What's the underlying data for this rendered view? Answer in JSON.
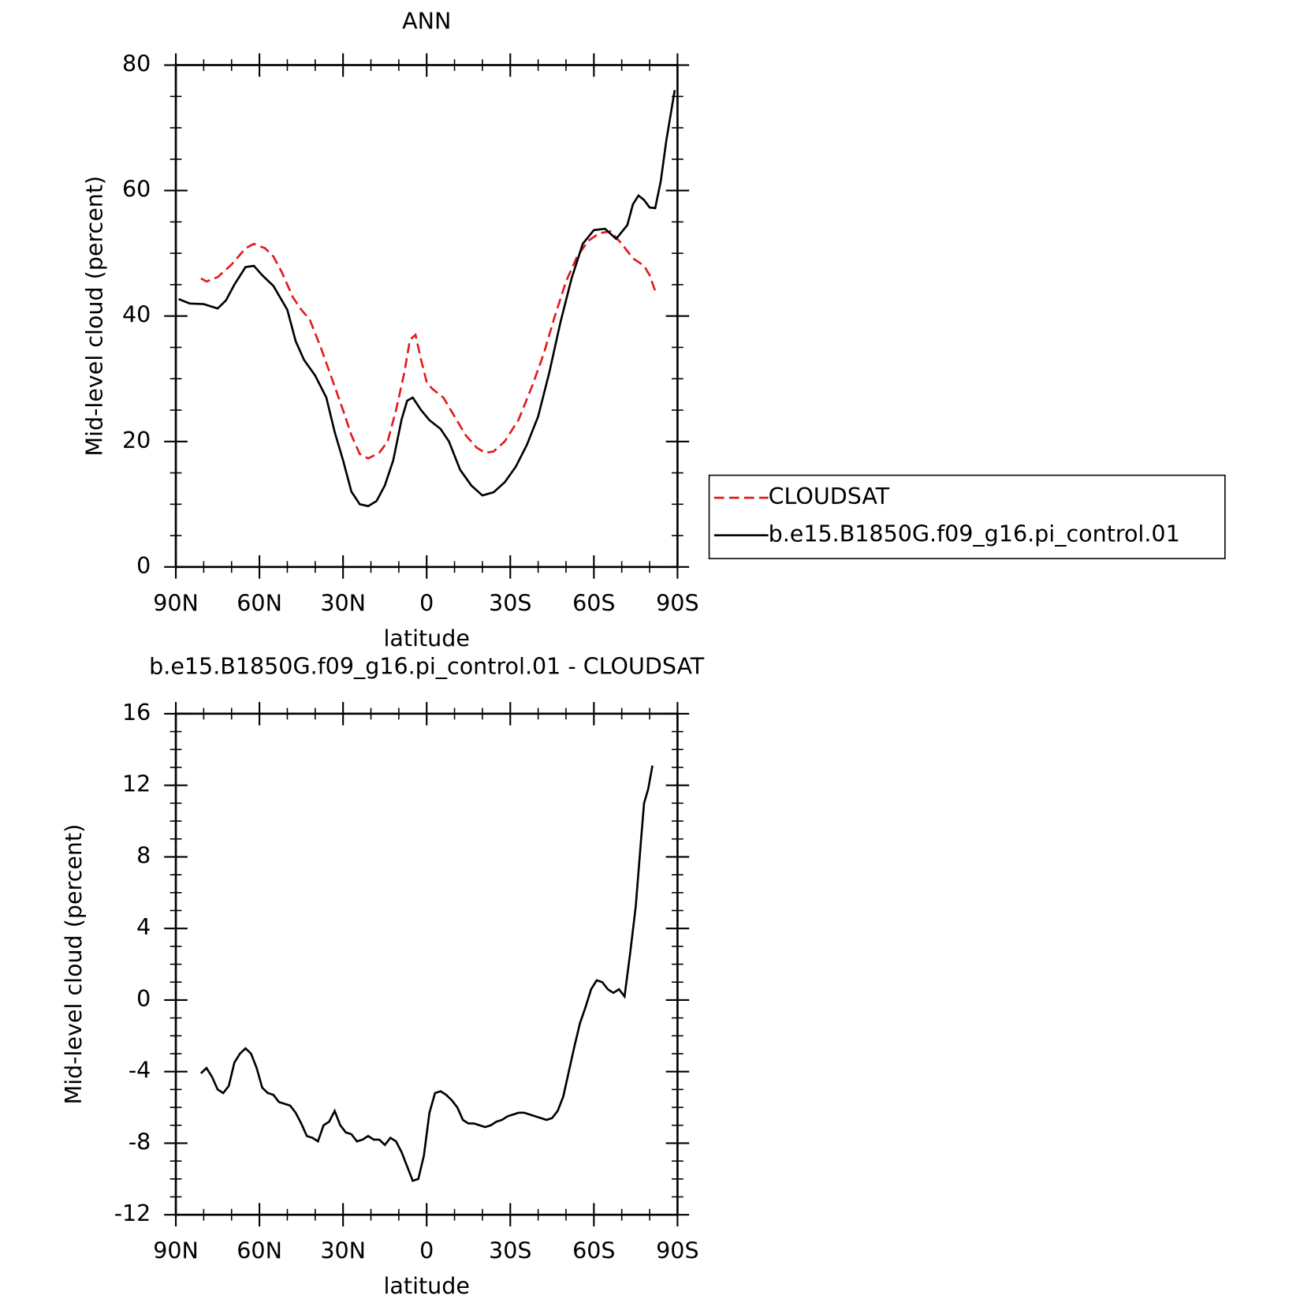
{
  "chart_data": [
    {
      "type": "line",
      "title": "ANN",
      "xlabel": "latitude",
      "ylabel": "Mid-level cloud (percent)",
      "xlim": [
        90,
        -90
      ],
      "xticks": [
        {
          "value": 90,
          "label": "90N"
        },
        {
          "value": 60,
          "label": "60N"
        },
        {
          "value": 30,
          "label": "30N"
        },
        0,
        {
          "value": -30,
          "label": "30S"
        },
        {
          "value": -60,
          "label": "60S"
        },
        {
          "value": -90,
          "label": "90S"
        }
      ],
      "ylim": [
        0,
        80
      ],
      "yticks": [
        0,
        20,
        40,
        60,
        80
      ],
      "legend": "right",
      "series": [
        {
          "name": "CLOUDSAT",
          "color": "#e31a1c",
          "linestyle": "dashed",
          "x": [
            81,
            79,
            75,
            70,
            65,
            62,
            58,
            55,
            52,
            48,
            45,
            42,
            38,
            34,
            30,
            27,
            24,
            21,
            17,
            14,
            11,
            8,
            6,
            4,
            2,
            0,
            -2,
            -6,
            -10,
            -14,
            -18,
            -21,
            -24,
            -28,
            -33,
            -38,
            -42,
            -46,
            -50,
            -54,
            -58,
            -62,
            -66,
            -70,
            -74,
            -78,
            -80,
            -82
          ],
          "values": [
            46,
            45.5,
            46.2,
            48.2,
            50.8,
            51.5,
            50.8,
            49.5,
            47,
            43,
            41,
            39.5,
            35,
            30,
            25,
            21,
            18,
            17.3,
            18.2,
            20,
            25,
            31,
            36.2,
            37,
            33,
            29.5,
            28.4,
            27,
            24,
            21,
            19,
            18.2,
            18.4,
            20,
            23.5,
            29,
            34,
            40,
            45.5,
            49.5,
            52,
            53.2,
            53.5,
            51.5,
            49.2,
            48,
            46.5,
            44
          ]
        },
        {
          "name": "b.e15.B1850G.f09_g16.pi_control.01",
          "color": "#000000",
          "linestyle": "solid",
          "x": [
            89,
            85,
            80,
            75,
            72,
            69,
            65,
            62,
            59,
            55,
            50,
            47,
            44,
            40,
            36,
            33,
            30,
            27,
            24,
            21,
            18,
            15,
            12,
            9,
            7,
            5,
            2,
            -1,
            -5,
            -8,
            -12,
            -16,
            -20,
            -24,
            -28,
            -32,
            -36,
            -40,
            -44,
            -48,
            -52,
            -56,
            -60,
            -64,
            -68,
            -72,
            -74,
            -76,
            -78,
            -80,
            -82,
            -84,
            -86,
            -89
          ],
          "values": [
            42.7,
            42,
            41.9,
            41.2,
            42.5,
            45,
            47.8,
            48,
            46.5,
            44.8,
            41,
            36,
            33,
            30.5,
            27,
            21.5,
            17,
            12,
            10,
            9.7,
            10.5,
            13,
            17,
            23.5,
            26.5,
            27,
            25,
            23.4,
            22,
            20,
            15.5,
            13,
            11.4,
            11.9,
            13.5,
            16,
            19.5,
            24,
            31,
            39,
            46,
            51.5,
            53.7,
            53.9,
            52.3,
            54.5,
            57.8,
            59.2,
            58.5,
            57.3,
            57.2,
            61.5,
            68,
            76
          ]
        }
      ]
    },
    {
      "type": "line",
      "title": "b.e15.B1850G.f09_g16.pi_control.01 - CLOUDSAT",
      "xlabel": "latitude",
      "ylabel": "Mid-level cloud (percent)",
      "xlim": [
        90,
        -90
      ],
      "xticks": [
        {
          "value": 90,
          "label": "90N"
        },
        {
          "value": 60,
          "label": "60N"
        },
        {
          "value": 30,
          "label": "30N"
        },
        0,
        {
          "value": -30,
          "label": "30S"
        },
        {
          "value": -60,
          "label": "60S"
        },
        {
          "value": -90,
          "label": "90S"
        }
      ],
      "ylim": [
        -12,
        16
      ],
      "yticks": [
        -12,
        -8,
        -4,
        0,
        4,
        8,
        12,
        16
      ],
      "color": "#000000",
      "x": [
        81,
        79,
        77,
        75,
        73,
        71,
        69,
        67,
        65,
        63,
        61,
        59,
        57,
        55,
        53,
        51,
        49,
        47,
        45,
        43,
        41,
        39,
        37,
        35,
        33,
        31,
        29,
        27,
        25,
        23,
        21,
        19,
        17,
        15,
        13,
        11,
        9,
        7,
        5,
        3,
        1,
        -1,
        -3,
        -5,
        -7,
        -9,
        -11,
        -13,
        -15,
        -17,
        -19,
        -21,
        -23,
        -25,
        -27,
        -29,
        -31,
        -33,
        -35,
        -37,
        -39,
        -41,
        -43,
        -45,
        -47,
        -49,
        -51,
        -53,
        -55,
        -57,
        -59,
        -61,
        -63,
        -65,
        -67,
        -69,
        -71,
        -73,
        -75,
        -77,
        -78,
        -79.5,
        -81
      ],
      "values": [
        -4.1,
        -3.8,
        -4.3,
        -5,
        -5.2,
        -4.8,
        -3.5,
        -3,
        -2.7,
        -3,
        -3.8,
        -4.9,
        -5.2,
        -5.3,
        -5.7,
        -5.8,
        -5.9,
        -6.3,
        -6.9,
        -7.6,
        -7.7,
        -7.9,
        -7,
        -6.8,
        -6.2,
        -7,
        -7.4,
        -7.5,
        -7.9,
        -7.8,
        -7.6,
        -7.8,
        -7.8,
        -8.1,
        -7.7,
        -7.9,
        -8.5,
        -9.3,
        -10.1,
        -10,
        -8.7,
        -6.3,
        -5.2,
        -5.1,
        -5.3,
        -5.6,
        -6,
        -6.7,
        -6.9,
        -6.9,
        -7,
        -7.1,
        -7,
        -6.8,
        -6.7,
        -6.5,
        -6.4,
        -6.3,
        -6.3,
        -6.4,
        -6.5,
        -6.6,
        -6.7,
        -6.6,
        -6.2,
        -5.4,
        -4,
        -2.6,
        -1.3,
        -0.4,
        0.6,
        1.1,
        1,
        0.6,
        0.4,
        0.6,
        0.2,
        2.6,
        5.2,
        9.1,
        11,
        11.8,
        13.1
      ]
    }
  ]
}
